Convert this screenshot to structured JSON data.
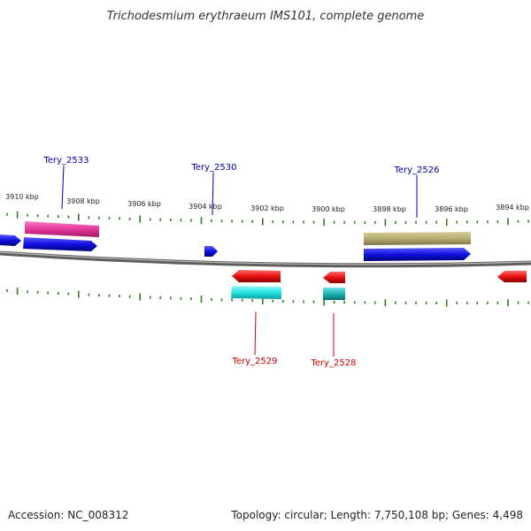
{
  "title": "Trichodesmium erythraeum IMS101, complete genome",
  "footer": {
    "accession": "Accession: NC_008312",
    "summary": "Topology: circular; Length: 7,750,108 bp; Genes: 4,498"
  },
  "scale_labels": [
    "3910 kbp",
    "3908 kbp",
    "3906 kbp",
    "3904 kbp",
    "3902 kbp",
    "3900 kbp",
    "3898 kbp",
    "3896 kbp",
    "3894 kbp"
  ],
  "gene_labels": {
    "forward": [
      "Tery_2533",
      "Tery_2530",
      "Tery_2526"
    ],
    "reverse": [
      "Tery_2529",
      "Tery_2528"
    ]
  },
  "colors": {
    "forward_gene": "#1010e0",
    "reverse_gene": "#e81010",
    "forward_feature": "#e0389a",
    "forward_region": "#b5ad72",
    "reverse_feature_a": "#22e4e4",
    "reverse_feature_b": "#1fb4b4",
    "label_forward": "#0000aa",
    "label_reverse": "#cc0000",
    "tick": "#2e7d1e",
    "backbone": "#808080"
  }
}
